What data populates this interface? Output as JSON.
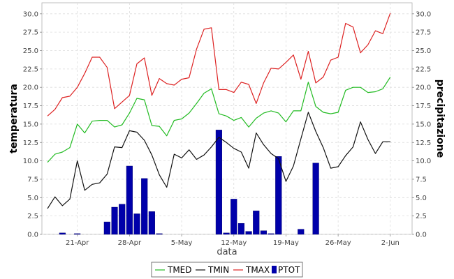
{
  "chart_data": {
    "type": "line",
    "title": "",
    "xlabel": "data",
    "ylabel_left": "temperatura",
    "ylabel_right": "precipitazione",
    "ylim": [
      0,
      31.5
    ],
    "yticks": [
      "0.0",
      "2.5",
      "5.0",
      "7.5",
      "10.0",
      "12.5",
      "15.0",
      "17.5",
      "20.0",
      "22.5",
      "25.0",
      "27.5",
      "30.0"
    ],
    "xticks": [
      {
        "label": "21-Apr",
        "day": 21
      },
      {
        "label": "28-Apr",
        "day": 28
      },
      {
        "label": "5-May",
        "day": 35
      },
      {
        "label": "12-May",
        "day": 42
      },
      {
        "label": "19-May",
        "day": 49
      },
      {
        "label": "26-May",
        "day": 56
      },
      {
        "label": "2-Jun",
        "day": 63
      }
    ],
    "grid": true,
    "legend_position": "bottom",
    "start_day": 17,
    "end_day": 64,
    "series": [
      {
        "name": "TMED",
        "type": "line",
        "color": "#22bb22",
        "values": [
          9.8,
          10.9,
          11.2,
          11.8,
          15.0,
          13.8,
          15.4,
          15.5,
          15.5,
          14.6,
          14.9,
          16.5,
          18.5,
          18.3,
          14.8,
          14.7,
          13.4,
          15.5,
          15.7,
          16.5,
          17.8,
          19.2,
          19.8,
          16.4,
          16.1,
          15.5,
          15.9,
          14.6,
          15.8,
          16.5,
          16.8,
          16.5,
          15.3,
          16.8,
          16.8,
          20.7,
          17.4,
          16.6,
          16.4,
          16.6,
          19.6,
          20.0,
          20.0,
          19.3,
          19.4,
          19.8,
          21.4
        ]
      },
      {
        "name": "TMIN",
        "type": "line",
        "color": "#111111",
        "values": [
          3.5,
          5.1,
          3.9,
          4.8,
          10.0,
          6.0,
          6.8,
          7.0,
          8.2,
          11.9,
          11.8,
          14.1,
          13.9,
          12.8,
          10.8,
          8.1,
          6.4,
          10.9,
          10.4,
          11.5,
          10.2,
          10.8,
          11.9,
          13.2,
          12.5,
          11.7,
          11.2,
          9.0,
          13.8,
          12.2,
          11.0,
          10.3,
          7.2,
          9.3,
          13.0,
          16.6,
          14.0,
          11.8,
          9.0,
          9.2,
          10.7,
          11.9,
          15.3,
          12.9,
          11.0,
          12.6,
          12.6
        ]
      },
      {
        "name": "TMAX",
        "type": "line",
        "color": "#dd2222",
        "values": [
          16.1,
          17.0,
          18.6,
          18.8,
          20.0,
          21.9,
          24.1,
          24.1,
          22.7,
          17.1,
          18.0,
          18.9,
          23.2,
          24.0,
          18.9,
          21.2,
          20.5,
          20.3,
          21.1,
          21.3,
          25.2,
          27.9,
          28.1,
          19.7,
          19.7,
          19.3,
          20.7,
          20.4,
          17.8,
          20.6,
          22.6,
          22.5,
          23.4,
          24.4,
          21.1,
          24.9,
          20.6,
          21.4,
          23.7,
          24.1,
          28.7,
          28.2,
          24.7,
          25.8,
          27.7,
          27.3,
          30.1
        ]
      },
      {
        "name": "PTOT",
        "type": "bar",
        "color": "#0000aa",
        "values": [
          0,
          0,
          0.2,
          0,
          0.1,
          0,
          0,
          0,
          1.7,
          3.7,
          4.1,
          9.3,
          2.8,
          7.6,
          3.1,
          0.1,
          0,
          0,
          0,
          0,
          0,
          0,
          0,
          14.2,
          0.2,
          4.8,
          1.5,
          0.4,
          3.2,
          0.5,
          0.1,
          10.6,
          0,
          0,
          0.7,
          0,
          9.7,
          0,
          0,
          0,
          0,
          0,
          0,
          0,
          0,
          0,
          0
        ]
      }
    ]
  }
}
